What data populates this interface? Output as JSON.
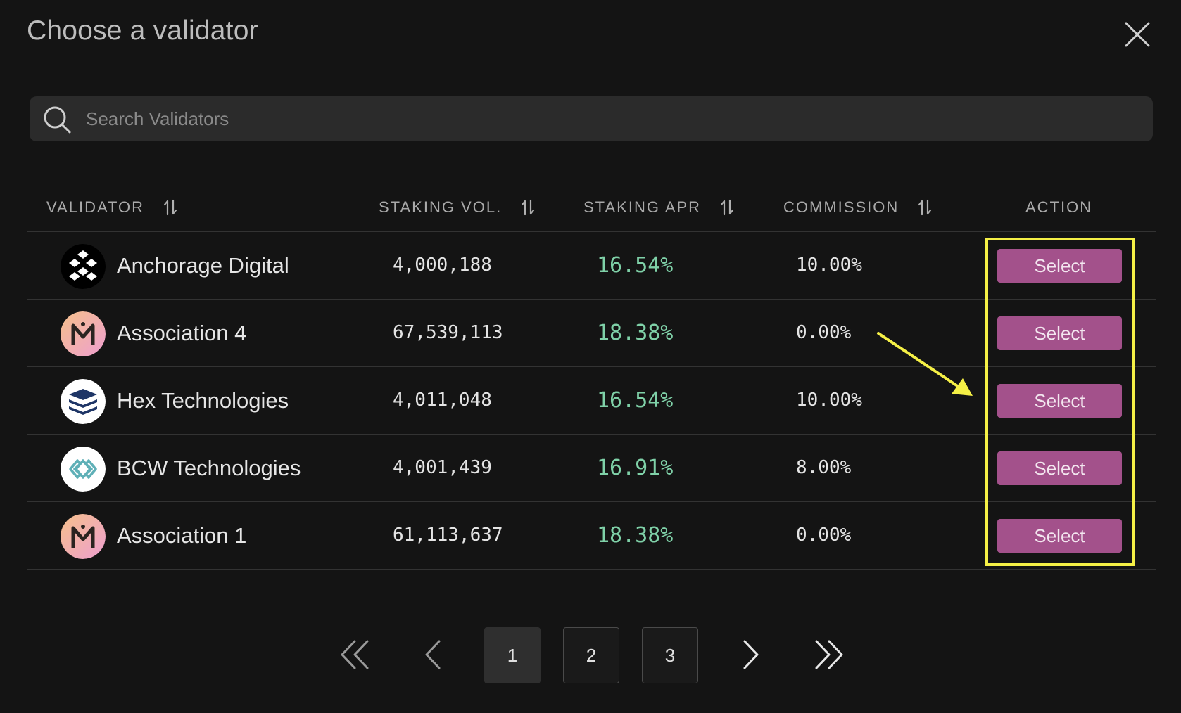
{
  "modal": {
    "title": "Choose a validator",
    "close_icon": "close-icon"
  },
  "search": {
    "placeholder": "Search Validators",
    "value": "",
    "icon": "search-icon"
  },
  "table": {
    "headers": {
      "validator": "VALIDATOR",
      "staking_vol": "STAKING VOL.",
      "staking_apr": "STAKING APR",
      "commission": "COMMISSION",
      "action": "ACTION"
    },
    "rows": [
      {
        "name": "Anchorage Digital",
        "staking_vol": "4,000,188",
        "staking_apr": "16.54%",
        "commission": "10.00%",
        "action": "Select",
        "avatar": "anchorage-logo"
      },
      {
        "name": "Association 4",
        "staking_vol": "67,539,113",
        "staking_apr": "18.38%",
        "commission": "0.00%",
        "action": "Select",
        "avatar": "association-logo"
      },
      {
        "name": "Hex Technologies",
        "staking_vol": "4,011,048",
        "staking_apr": "16.54%",
        "commission": "10.00%",
        "action": "Select",
        "avatar": "hex-logo"
      },
      {
        "name": "BCW Technologies",
        "staking_vol": "4,001,439",
        "staking_apr": "16.91%",
        "commission": "8.00%",
        "action": "Select",
        "avatar": "bcw-logo"
      },
      {
        "name": "Association 1",
        "staking_vol": "61,113,637",
        "staking_apr": "18.38%",
        "commission": "0.00%",
        "action": "Select",
        "avatar": "association-logo"
      }
    ]
  },
  "pagination": {
    "pages": [
      "1",
      "2",
      "3"
    ],
    "current": "1"
  },
  "colors": {
    "background": "#141414",
    "accent_button": "#a3518b",
    "apr_green": "#7fd1a8",
    "annotation_yellow": "#f5f046"
  }
}
